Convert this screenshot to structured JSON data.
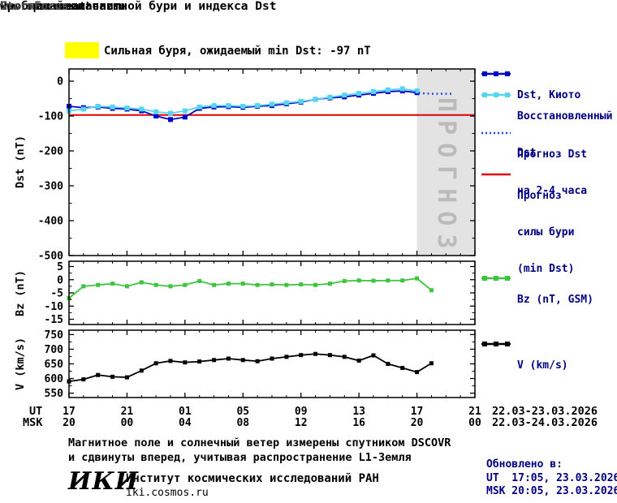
{
  "header": {
    "title_line1": "Прогноз геомагнитной бури и индекса Dst",
    "title_line2": "на ближайшие часы",
    "site": "www.spaceweather.ru",
    "brand": "StormFocus"
  },
  "warning": {
    "text": "Сильная буря, ожидаемый min Dst: -97 nT",
    "color": "#FFFF00"
  },
  "watermark": "ПРОГНОЗ",
  "axes": {
    "dst_title": "Dst (nT)",
    "bz_title": "Bz (nT)",
    "v_title": "V (km/s)",
    "ut_label": "UT",
    "msk_label": "MSK",
    "ut_dates": "22.03-23.03.2026",
    "msk_dates": "22.03-24.03.2026"
  },
  "legend": {
    "dst_kyoto": {
      "label": "Dst, Киото",
      "color": "#0000C8"
    },
    "restored": {
      "line1": "Восстановленный",
      "line2": "Dst",
      "color": "#55D5F0"
    },
    "forecast": {
      "line1": "Прогноз Dst",
      "line2": "на 2-4 часа",
      "color": "#2244EE"
    },
    "storm_level": {
      "line1": "Прогноз",
      "line2": "силы бури",
      "line3": "(min Dst)",
      "color": "#E00000"
    },
    "bz": {
      "label": "Bz (nT, GSM)",
      "color": "#3FC43F"
    },
    "v": {
      "label": "V (km/s)",
      "color": "#000000"
    }
  },
  "footer": {
    "note_line1": "Магнитное поле и солнечный ветер измерены спутником DSCOVR",
    "note_line2": "и сдвинуты вперед, учитывая распространение L1-Земля",
    "updated_label": "Обновлено в:",
    "updated_ut": "UT  17:05, 23.03.2026",
    "updated_msk": "MSK 20:05, 23.03.2026",
    "logo": "ИКИ",
    "institute": "Институт космических исследований РАН",
    "site": "iki.cosmos.ru"
  },
  "chart_data": {
    "type": "line",
    "x_hours_max": 28,
    "forecast_region_color": "#E3E3E3",
    "xticks": {
      "hours": [
        0,
        4,
        8,
        12,
        16,
        20,
        24,
        28
      ],
      "ut": [
        "17",
        "21",
        "01",
        "05",
        "09",
        "13",
        "17",
        "21"
      ],
      "msk": [
        "20",
        "00",
        "04",
        "08",
        "12",
        "16",
        "20",
        "00"
      ]
    },
    "panels": [
      {
        "name": "dst",
        "ylabel": "Dst (nT)",
        "ylim": [
          -500,
          35
        ],
        "yticks": [
          0,
          -100,
          -200,
          -300,
          -400,
          -500
        ],
        "forecast_region": [
          24,
          28
        ],
        "threshold": {
          "value": -97,
          "color": "#E00000",
          "label": "Прогноз силы бури (min Dst)"
        },
        "series": [
          {
            "id": "dst_kyoto",
            "name": "Dst, Киото",
            "color": "#0000C8",
            "style": "squares",
            "marker_size": 6,
            "x": [
              0,
              1,
              2,
              3,
              4,
              5,
              6,
              7,
              8,
              9,
              10,
              11,
              12,
              13,
              14,
              15,
              16,
              17,
              18,
              19,
              20,
              21,
              22,
              23,
              24
            ],
            "y": [
              -72,
              -76,
              -74,
              -78,
              -80,
              -85,
              -100,
              -110,
              -103,
              -78,
              -74,
              -73,
              -75,
              -72,
              -70,
              -65,
              -60,
              -52,
              -48,
              -45,
              -40,
              -35,
              -30,
              -28,
              -33
            ]
          },
          {
            "id": "restored_dst",
            "name": "Восстановленный Dst",
            "color": "#55D5F0",
            "style": "squares",
            "marker_size": 6,
            "x": [
              0,
              1,
              2,
              3,
              4,
              5,
              6,
              7,
              8,
              9,
              10,
              11,
              12,
              13,
              14,
              15,
              16,
              17,
              18,
              19,
              20,
              21,
              22,
              23,
              24
            ],
            "y": [
              -85,
              -80,
              -72,
              -74,
              -77,
              -80,
              -88,
              -92,
              -85,
              -74,
              -70,
              -70,
              -72,
              -70,
              -66,
              -62,
              -58,
              -52,
              -46,
              -40,
              -35,
              -30,
              -25,
              -22,
              -28
            ]
          },
          {
            "id": "forecast_dst",
            "name": "Прогноз Dst на 2-4 часа",
            "color": "#2244EE",
            "style": "dotted",
            "x": [
              23.5,
              24,
              24.5,
              25,
              25.5,
              26,
              26.5
            ],
            "y": [
              -30,
              -33,
              -35,
              -36,
              -36,
              -36,
              -36
            ]
          }
        ]
      },
      {
        "name": "bz",
        "ylabel": "Bz (nT)",
        "ylim": [
          -17,
          7
        ],
        "yticks": [
          5,
          0,
          -5,
          -10,
          -15
        ],
        "series": [
          {
            "id": "bz",
            "name": "Bz (nT, GSM)",
            "color": "#3FC43F",
            "style": "squares",
            "marker_size": 5,
            "x": [
              0,
              1,
              2,
              3,
              4,
              5,
              6,
              7,
              8,
              9,
              10,
              11,
              12,
              13,
              14,
              15,
              16,
              17,
              18,
              19,
              20,
              21,
              22,
              23,
              24,
              25
            ],
            "y": [
              -7,
              -2.5,
              -2,
              -1.5,
              -2.5,
              -1,
              -2,
              -2.5,
              -2,
              -0.5,
              -2,
              -1.5,
              -1.5,
              -2,
              -1.8,
              -2,
              -1.8,
              -2,
              -1.5,
              -0.5,
              -0.3,
              -0.4,
              -0.3,
              -0.3,
              0.5,
              -4
            ]
          }
        ]
      },
      {
        "name": "v",
        "ylabel": "V (km/s)",
        "ylim": [
          535,
          765
        ],
        "yticks": [
          750,
          700,
          650,
          600,
          550
        ],
        "series": [
          {
            "id": "v",
            "name": "V (km/s)",
            "color": "#000000",
            "style": "squares",
            "marker_size": 5,
            "x": [
              0,
              1,
              2,
              3,
              4,
              5,
              6,
              7,
              8,
              9,
              10,
              11,
              12,
              13,
              14,
              15,
              16,
              17,
              18,
              19,
              20,
              21,
              22,
              23,
              24,
              25
            ],
            "y": [
              590,
              597,
              612,
              606,
              604,
              627,
              652,
              660,
              655,
              658,
              663,
              668,
              663,
              659,
              668,
              674,
              680,
              684,
              680,
              674,
              661,
              679,
              650,
              636,
              622,
              652
            ]
          }
        ]
      }
    ]
  }
}
